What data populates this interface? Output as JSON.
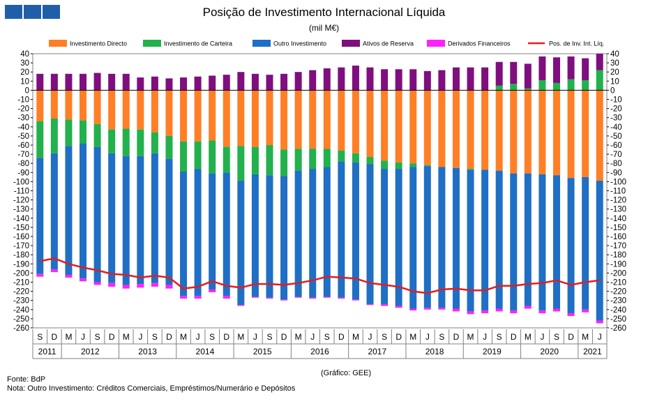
{
  "header": {
    "title": "Posição de Investimento Internacional Líquida",
    "subtitle": "(mil M€)"
  },
  "footer": {
    "credit": "(Gráfico: GEE)",
    "source": "Fonte: BdP",
    "note": "Nota: Outro Investimento:  Créditos Comerciais, Empréstimos/Numerário  e Depósitos"
  },
  "chart_data": {
    "type": "bar",
    "stacked": true,
    "categories": [
      "S",
      "D",
      "M",
      "J",
      "S",
      "D",
      "M",
      "J",
      "S",
      "D",
      "M",
      "J",
      "S",
      "D",
      "M",
      "J",
      "S",
      "D",
      "M",
      "J",
      "S",
      "D",
      "M",
      "J",
      "S",
      "D",
      "M",
      "J",
      "S",
      "D",
      "M",
      "J",
      "S",
      "D",
      "M",
      "J",
      "S",
      "D",
      "M",
      "J"
    ],
    "years": [
      {
        "label": "2011",
        "count": 2
      },
      {
        "label": "2012",
        "count": 4
      },
      {
        "label": "2013",
        "count": 4
      },
      {
        "label": "2014",
        "count": 4
      },
      {
        "label": "2015",
        "count": 4
      },
      {
        "label": "2016",
        "count": 4
      },
      {
        "label": "2017",
        "count": 4
      },
      {
        "label": "2018",
        "count": 4
      },
      {
        "label": "2019",
        "count": 4
      },
      {
        "label": "2020",
        "count": 4
      },
      {
        "label": "2021",
        "count": 2
      }
    ],
    "ylim": [
      -260,
      40
    ],
    "yticks": [
      "40",
      "30",
      "20",
      "10",
      "0",
      "-10",
      "-20",
      "-30",
      "-40",
      "-50",
      "-60",
      "-70",
      "-80",
      "-90",
      "-100",
      "-110",
      "-120",
      "-130",
      "-140",
      "-150",
      "-160",
      "-170",
      "-180",
      "-190",
      "-200",
      "-210",
      "-220",
      "-230",
      "-240",
      "-250",
      "-260"
    ],
    "series": [
      {
        "name": "Investimento Directo",
        "color": "#ff7f27",
        "values": [
          -34,
          -31,
          -32,
          -33,
          -37,
          -43,
          -42,
          -43,
          -46,
          -50,
          -56,
          -56,
          -55,
          -62,
          -61,
          -62,
          -60,
          -65,
          -64,
          -64,
          -64,
          -66,
          -69,
          -73,
          -77,
          -79,
          -80,
          -82,
          -84,
          -85,
          -86,
          -87,
          -88,
          -91,
          -91,
          -92,
          -93,
          -96,
          -95,
          -99
        ]
      },
      {
        "name": "Investimento de Carteira",
        "color": "#22b14c",
        "values": [
          -40,
          -38,
          -29,
          -25,
          -25,
          -26,
          -30,
          -29,
          -23,
          -25,
          -33,
          -30,
          -36,
          -28,
          -38,
          -30,
          -33,
          -29,
          -24,
          -22,
          -20,
          -12,
          -10,
          -8,
          -9,
          -7,
          -4,
          -1,
          0,
          0,
          -1,
          0,
          5,
          7,
          2,
          11,
          8,
          12,
          11,
          22
        ]
      },
      {
        "name": "Outro Investimento",
        "color": "#1f6fc5",
        "values": [
          -127,
          -127,
          -141,
          -148,
          -148,
          -142,
          -141,
          -140,
          -142,
          -138,
          -136,
          -139,
          -127,
          -135,
          -136,
          -134,
          -134,
          -135,
          -138,
          -141,
          -142,
          -149,
          -150,
          -153,
          -148,
          -150,
          -155,
          -155,
          -154,
          -154,
          -155,
          -154,
          -151,
          -150,
          -145,
          -149,
          -146,
          -148,
          -145,
          -153
        ]
      },
      {
        "name": "Ativos de Reserva",
        "color": "#7f0f7f",
        "values": [
          18,
          18,
          18,
          18,
          19,
          18,
          18,
          14,
          15,
          13,
          14,
          15,
          16,
          17,
          20,
          18,
          17,
          18,
          20,
          22,
          24,
          25,
          27,
          25,
          23,
          23,
          23,
          21,
          22,
          25,
          25,
          25,
          26,
          24,
          27,
          26,
          28,
          25,
          24,
          18
        ]
      },
      {
        "name": "Derivados Financeiros",
        "color": "#ff22ff",
        "values": [
          -3,
          -3,
          -3,
          -3,
          -3,
          -4,
          -4,
          -4,
          -4,
          -4,
          -3,
          -3,
          -3,
          -3,
          -1,
          -1,
          -1,
          -1,
          -1,
          -1,
          -1,
          -1,
          -1,
          -1,
          -2,
          -2,
          -2,
          -2,
          -2,
          -3,
          -3,
          -3,
          -3,
          -3,
          -3,
          -3,
          -3,
          -3,
          -3,
          -3
        ]
      },
      {
        "name": "Pos. de Inv. Int. Líq.",
        "color": "#e51c1c",
        "type": "line",
        "values": [
          -187,
          -184,
          -190,
          -194,
          -197,
          -201,
          -202,
          -205,
          -203,
          -205,
          -217,
          -215,
          -209,
          -214,
          -216,
          -212,
          -212,
          -213,
          -211,
          -208,
          -204,
          -205,
          -206,
          -211,
          -213,
          -215,
          -220,
          -222,
          -218,
          -217,
          -219,
          -219,
          -214,
          -214,
          -212,
          -211,
          -208,
          -213,
          -210,
          -208
        ]
      }
    ]
  }
}
